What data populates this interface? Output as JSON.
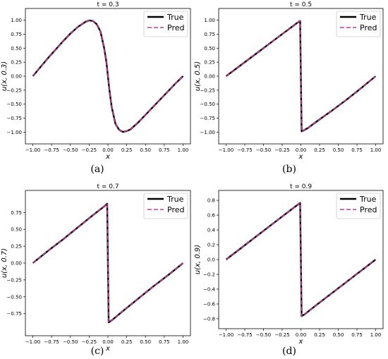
{
  "chart_data": [
    {
      "type": "line",
      "panel": "(a)",
      "title": "t = 0.3",
      "xlabel": "x",
      "ylabel": "u(x, 0.3)",
      "xlim": [
        -1.0,
        1.0
      ],
      "ylim": [
        -1.1,
        1.1
      ],
      "xticks": [
        -1.0,
        -0.75,
        -0.5,
        -0.25,
        0.0,
        0.25,
        0.5,
        0.75,
        1.0
      ],
      "xtick_labels": [
        "−1.00",
        "−0.75",
        "−0.50",
        "−0.25",
        "0.00",
        "0.25",
        "0.50",
        "0.75",
        "1.00"
      ],
      "yticks": [
        1.0,
        0.75,
        0.5,
        0.25,
        0.0,
        -0.25,
        -0.5,
        -0.75,
        -1.0
      ],
      "ytick_labels": [
        "1.00",
        "0.75",
        "0.50",
        "0.25",
        "0.00",
        "−0.25",
        "−0.50",
        "−0.75",
        "−1.00"
      ],
      "legend_position": "top-right",
      "x": [
        -1.0,
        -0.9,
        -0.8,
        -0.7,
        -0.6,
        -0.5,
        -0.4,
        -0.3,
        -0.25,
        -0.2,
        -0.15,
        -0.1,
        -0.05,
        -0.02,
        0.0,
        0.02,
        0.05,
        0.1,
        0.15,
        0.2,
        0.25,
        0.3,
        0.4,
        0.5,
        0.6,
        0.7,
        0.8,
        0.9,
        1.0
      ],
      "series": [
        {
          "name": "True",
          "color": "#000000",
          "values": [
            0.0,
            0.16,
            0.32,
            0.47,
            0.62,
            0.76,
            0.88,
            0.97,
            0.995,
            0.985,
            0.93,
            0.8,
            0.5,
            0.25,
            0.0,
            -0.25,
            -0.55,
            -0.85,
            -0.96,
            -0.995,
            -0.98,
            -0.95,
            -0.83,
            -0.69,
            -0.55,
            -0.41,
            -0.27,
            -0.13,
            0.0
          ]
        },
        {
          "name": "Pred",
          "color": "#c0399b",
          "values": [
            0.0,
            0.16,
            0.32,
            0.47,
            0.62,
            0.76,
            0.88,
            0.97,
            0.995,
            0.985,
            0.93,
            0.8,
            0.5,
            0.25,
            0.0,
            -0.25,
            -0.55,
            -0.85,
            -0.96,
            -0.995,
            -0.98,
            -0.95,
            -0.83,
            -0.69,
            -0.55,
            -0.41,
            -0.27,
            -0.13,
            0.0
          ]
        }
      ]
    },
    {
      "type": "line",
      "panel": "(b)",
      "title": "t = 0.5",
      "xlabel": "x",
      "ylabel": "u(x, 0.5)",
      "xlim": [
        -1.0,
        1.0
      ],
      "ylim": [
        -1.1,
        1.1
      ],
      "xticks": [
        -1.0,
        -0.75,
        -0.5,
        -0.25,
        0.0,
        0.25,
        0.5,
        0.75,
        1.0
      ],
      "xtick_labels": [
        "−1.00",
        "−0.75",
        "−0.50",
        "−0.25",
        "0.00",
        "0.25",
        "0.50",
        "0.75",
        "1.00"
      ],
      "yticks": [
        1.0,
        0.75,
        0.5,
        0.25,
        0.0,
        -0.25,
        -0.5,
        -0.75,
        -1.0
      ],
      "ytick_labels": [
        "1.00",
        "0.75",
        "0.50",
        "0.25",
        "0.00",
        "−0.25",
        "−0.50",
        "−0.75",
        "−1.00"
      ],
      "legend_position": "top-right",
      "x": [
        -1.0,
        -0.8,
        -0.6,
        -0.4,
        -0.2,
        -0.1,
        -0.05,
        -0.02,
        -0.01,
        0.0,
        0.01,
        0.02,
        0.05,
        0.1,
        0.2,
        0.4,
        0.6,
        0.8,
        1.0
      ],
      "series": [
        {
          "name": "True",
          "color": "#000000",
          "values": [
            0.0,
            0.2,
            0.4,
            0.6,
            0.8,
            0.9,
            0.95,
            0.98,
            0.985,
            0.0,
            -0.985,
            -0.98,
            -0.96,
            -0.92,
            -0.82,
            -0.63,
            -0.43,
            -0.22,
            0.0
          ]
        },
        {
          "name": "Pred",
          "color": "#c0399b",
          "values": [
            0.0,
            0.2,
            0.4,
            0.6,
            0.8,
            0.9,
            0.95,
            0.98,
            0.985,
            0.0,
            -0.985,
            -0.98,
            -0.96,
            -0.92,
            -0.82,
            -0.63,
            -0.43,
            -0.22,
            0.0
          ]
        }
      ]
    },
    {
      "type": "line",
      "panel": "(c)",
      "title": "t = 0.7",
      "xlabel": "x",
      "ylabel": "u(x, 0.7)",
      "xlim": [
        -1.0,
        1.0
      ],
      "ylim": [
        -0.98,
        0.98
      ],
      "xticks": [
        -1.0,
        -0.75,
        -0.5,
        -0.25,
        0.0,
        0.25,
        0.5,
        0.75,
        1.0
      ],
      "xtick_labels": [
        "−1.00",
        "−0.75",
        "−0.50",
        "−0.25",
        "0.00",
        "0.25",
        "0.50",
        "0.75",
        "1.00"
      ],
      "yticks": [
        0.75,
        0.5,
        0.25,
        0.0,
        -0.25,
        -0.5,
        -0.75
      ],
      "ytick_labels": [
        "0.75",
        "0.50",
        "0.25",
        "0.00",
        "−0.25",
        "−0.50",
        "−0.75"
      ],
      "legend_position": "top-right",
      "x": [
        -1.0,
        -0.8,
        -0.6,
        -0.4,
        -0.2,
        -0.05,
        -0.01,
        0.0,
        0.01,
        0.05,
        0.2,
        0.4,
        0.6,
        0.8,
        1.0
      ],
      "series": [
        {
          "name": "True",
          "color": "#000000",
          "values": [
            0.0,
            0.18,
            0.35,
            0.53,
            0.71,
            0.84,
            0.88,
            0.0,
            -0.88,
            -0.85,
            -0.71,
            -0.53,
            -0.35,
            -0.18,
            0.0
          ]
        },
        {
          "name": "Pred",
          "color": "#c0399b",
          "values": [
            0.0,
            0.18,
            0.35,
            0.53,
            0.71,
            0.84,
            0.88,
            0.0,
            -0.88,
            -0.85,
            -0.71,
            -0.53,
            -0.35,
            -0.18,
            0.0
          ]
        }
      ]
    },
    {
      "type": "line",
      "panel": "(d)",
      "title": "t = 0.9",
      "xlabel": "x",
      "ylabel": "u(x, 0.9)",
      "xlim": [
        -1.0,
        1.0
      ],
      "ylim": [
        -0.85,
        0.85
      ],
      "xticks": [
        -1.0,
        -0.75,
        -0.5,
        -0.25,
        0.0,
        0.25,
        0.5,
        0.75,
        1.0
      ],
      "xtick_labels": [
        "−1.00",
        "−0.75",
        "−0.50",
        "−0.25",
        "0.00",
        "0.25",
        "0.50",
        "0.75",
        "1.00"
      ],
      "yticks": [
        0.8,
        0.6,
        0.4,
        0.2,
        0.0,
        -0.2,
        -0.4,
        -0.6,
        -0.8
      ],
      "ytick_labels": [
        "0.8",
        "0.6",
        "0.4",
        "0.2",
        "0.0",
        "−0.2",
        "−0.4",
        "−0.6",
        "−0.8"
      ],
      "legend_position": "top-right",
      "x": [
        -1.0,
        -0.8,
        -0.6,
        -0.4,
        -0.2,
        -0.05,
        -0.01,
        0.0,
        0.01,
        0.05,
        0.2,
        0.4,
        0.6,
        0.8,
        1.0
      ],
      "series": [
        {
          "name": "True",
          "color": "#000000",
          "values": [
            0.0,
            0.155,
            0.31,
            0.465,
            0.62,
            0.735,
            0.765,
            0.0,
            -0.765,
            -0.74,
            -0.62,
            -0.465,
            -0.31,
            -0.155,
            0.0
          ]
        },
        {
          "name": "Pred",
          "color": "#c0399b",
          "values": [
            0.0,
            0.155,
            0.31,
            0.465,
            0.62,
            0.735,
            0.765,
            0.0,
            -0.765,
            -0.74,
            -0.62,
            -0.465,
            -0.31,
            -0.155,
            0.0
          ]
        }
      ]
    }
  ]
}
